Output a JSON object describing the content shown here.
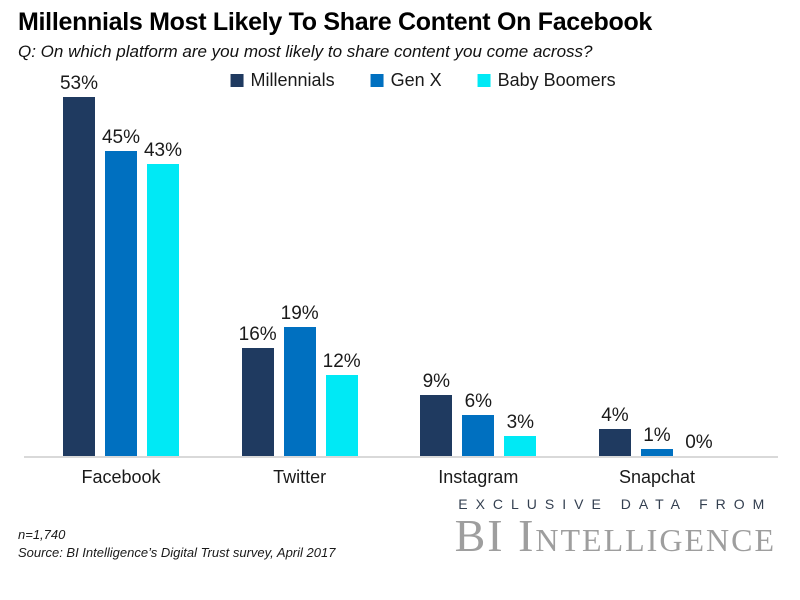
{
  "title": "Millennials Most Likely To Share Content On Facebook",
  "subtitle": "Q: On which platform are you most likely to share content you come across?",
  "chart_data": {
    "type": "bar",
    "categories": [
      "Facebook",
      "Twitter",
      "Instagram",
      "Snapchat"
    ],
    "series": [
      {
        "name": "Millennials",
        "color": "#1f3a60",
        "values": [
          53,
          16,
          9,
          4
        ]
      },
      {
        "name": "Gen X",
        "color": "#0070c0",
        "values": [
          45,
          19,
          6,
          1
        ]
      },
      {
        "name": "Baby Boomers",
        "color": "#00e9f5",
        "values": [
          43,
          12,
          3,
          0
        ]
      }
    ],
    "value_label_suffix": "%",
    "ylim": [
      0,
      57
    ],
    "grid": false,
    "legend_position": "top",
    "axis_line_color": "#d9d9d9"
  },
  "footer": {
    "sample_size": "n=1,740",
    "source": "Source: BI Intelligence’s Digital Trust survey, April 2017"
  },
  "branding": {
    "tagline": "EXCLUSIVE DATA FROM",
    "logo": "BI Intelligence"
  }
}
